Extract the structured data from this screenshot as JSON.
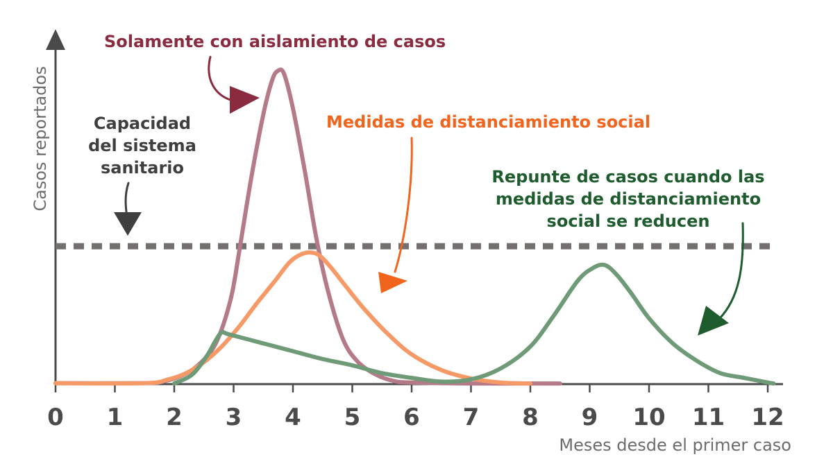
{
  "colors": {
    "axis": "#4a4a4a",
    "capacity_line": "#757070",
    "isolation": "#b57a88",
    "isolation_text": "#8a2b3f",
    "distancing": "#f59a67",
    "distancing_text": "#f0641d",
    "rebound": "#6f9a77",
    "rebound_text": "#1e5c2e",
    "label_gray": "#6b6b6b"
  },
  "annotations": {
    "capacity": [
      "Capacidad",
      "del sistema",
      "sanitario"
    ],
    "isolation": "Solamente con aislamiento de casos",
    "distancing": "Medidas de distanciamiento social",
    "rebound": [
      "Repunte de casos cuando las",
      "medidas de distanciamiento",
      "social se reducen"
    ]
  },
  "chart_data": {
    "type": "line",
    "xlabel": "Meses desde el primer caso",
    "ylabel": "Casos reportados",
    "xlim": [
      0,
      12.2
    ],
    "ylim": [
      0,
      100
    ],
    "x_ticks": [
      "0",
      "1",
      "2",
      "3",
      "4",
      "5",
      "6",
      "7",
      "8",
      "9",
      "10",
      "11",
      "12"
    ],
    "y_ticks": [],
    "grid": false,
    "legend": "none",
    "reference_lines": [
      {
        "label": "Capacidad del sistema sanitario",
        "y": 44,
        "style": "dashed"
      }
    ],
    "series": [
      {
        "name": "Solamente con aislamiento de casos",
        "x": [
          0,
          1.5,
          1.8,
          2.1,
          2.4,
          2.7,
          2.95,
          3.1,
          3.3,
          3.5,
          3.65,
          3.75,
          3.85,
          4.0,
          4.2,
          4.4,
          4.6,
          4.85,
          5.1,
          5.4,
          5.7,
          6.0,
          7.0,
          8.5
        ],
        "y": [
          0.3,
          0.3,
          0.8,
          2.5,
          6,
          13,
          27,
          43,
          66,
          86,
          97,
          100,
          99,
          88,
          68,
          46,
          29,
          14,
          7,
          3,
          1,
          0.5,
          0.2,
          0.2
        ]
      },
      {
        "name": "Medidas de distanciamiento social",
        "x": [
          0,
          1.5,
          1.9,
          2.2,
          2.5,
          2.8,
          3.1,
          3.4,
          3.7,
          3.95,
          4.15,
          4.3,
          4.45,
          4.65,
          4.9,
          5.2,
          5.6,
          6.0,
          6.5,
          7.0,
          7.5,
          8.0
        ],
        "y": [
          0.3,
          0.3,
          1.5,
          3.5,
          7,
          12,
          18.5,
          26,
          33,
          39,
          41.5,
          42,
          41,
          37,
          31,
          24,
          16,
          9.5,
          4.5,
          1.8,
          0.5,
          0.2
        ]
      },
      {
        "name": "Repunte de casos cuando las medidas de distanciamiento social se reducen",
        "x": [
          2.0,
          2.3,
          2.55,
          2.7,
          2.8,
          2.9,
          3.2,
          3.6,
          4.0,
          4.5,
          5.0,
          5.5,
          6.0,
          6.5,
          7.0,
          7.5,
          8.0,
          8.4,
          8.8,
          9.05,
          9.25,
          9.45,
          9.7,
          10.0,
          10.4,
          10.8,
          11.2,
          11.6,
          12.0,
          12.1
        ],
        "y": [
          0.2,
          3,
          9,
          14,
          16.5,
          16,
          14.5,
          12.5,
          10.5,
          8,
          6,
          3.5,
          2,
          0.8,
          1.5,
          5,
          12,
          22,
          33,
          37,
          38,
          35,
          29,
          21,
          13,
          7.5,
          3.5,
          2,
          0.5,
          0.2
        ]
      }
    ]
  }
}
